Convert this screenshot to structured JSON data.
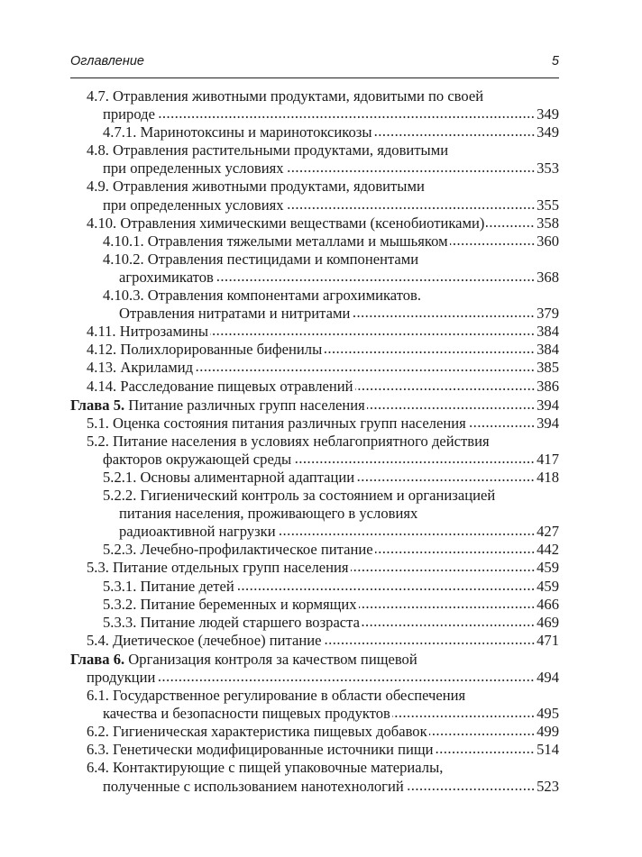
{
  "header": {
    "title": "Оглавление",
    "page_number": "5"
  },
  "entries": [
    {
      "level": 1,
      "lines": [
        "4.7. Отравления животными продуктами, ядовитыми по своей",
        "природе"
      ],
      "page": "349"
    },
    {
      "level": 2,
      "lines": [
        "4.7.1. Маринотоксины и маринотоксикозы"
      ],
      "page": "349"
    },
    {
      "level": 1,
      "lines": [
        "4.8. Отравления растительными продуктами, ядовитыми",
        "при определенных условиях"
      ],
      "page": "353"
    },
    {
      "level": 1,
      "lines": [
        "4.9. Отравления животными продуктами, ядовитыми",
        "при определенных условиях"
      ],
      "page": "355"
    },
    {
      "level": 1,
      "lines": [
        "4.10. Отравления химическими веществами (ксенобиотиками)"
      ],
      "page": "358"
    },
    {
      "level": 2,
      "lines": [
        "4.10.1. Отравления тяжелыми металлами и мышьяком"
      ],
      "page": "360"
    },
    {
      "level": 2,
      "lines": [
        "4.10.2. Отравления пестицидами и компонентами",
        "агрохимикатов"
      ],
      "page": "368"
    },
    {
      "level": 2,
      "lines": [
        "4.10.3. Отравления компонентами агрохимикатов.",
        "Отравления нитратами и нитритами"
      ],
      "page": "379"
    },
    {
      "level": 1,
      "lines": [
        "4.11. Нитрозамины"
      ],
      "page": "384"
    },
    {
      "level": 1,
      "lines": [
        "4.12. Полихлорированные бифенилы"
      ],
      "page": "384"
    },
    {
      "level": 1,
      "lines": [
        "4.13. Акриламид"
      ],
      "page": "385"
    },
    {
      "level": 1,
      "lines": [
        "4.14. Расследование пищевых отравлений"
      ],
      "page": "386"
    },
    {
      "level": 0,
      "bold": "Глава 5.",
      "lines": [
        " Питание различных групп населения"
      ],
      "page": "394"
    },
    {
      "level": 1,
      "lines": [
        "5.1. Оценка состояния питания различных групп населения"
      ],
      "page": "394"
    },
    {
      "level": 1,
      "lines": [
        "5.2. Питание населения в условиях неблагоприятного действия",
        "факторов окружающей среды"
      ],
      "page": "417"
    },
    {
      "level": 2,
      "lines": [
        "5.2.1. Основы алиментарной адаптации"
      ],
      "page": "418"
    },
    {
      "level": 2,
      "lines": [
        "5.2.2. Гигиенический контроль за состоянием и организацией",
        "питания населения, проживающего в условиях",
        "радиоактивной нагрузки"
      ],
      "page": "427"
    },
    {
      "level": 2,
      "lines": [
        "5.2.3. Лечебно-профилактическое питание"
      ],
      "page": "442"
    },
    {
      "level": 1,
      "lines": [
        "5.3. Питание отдельных групп населения"
      ],
      "page": "459"
    },
    {
      "level": 2,
      "lines": [
        "5.3.1. Питание детей"
      ],
      "page": "459"
    },
    {
      "level": 2,
      "lines": [
        "5.3.2. Питание беременных и кормящих"
      ],
      "page": "466"
    },
    {
      "level": 2,
      "lines": [
        "5.3.3. Питание людей старшего возраста"
      ],
      "page": "469"
    },
    {
      "level": 1,
      "lines": [
        "5.4. Диетическое (лечебное) питание"
      ],
      "page": "471"
    },
    {
      "level": 0,
      "bold": "Глава 6.",
      "lines": [
        " Организация контроля за качеством пищевой",
        "продукции"
      ],
      "page": "494"
    },
    {
      "level": 1,
      "lines": [
        "6.1. Государственное регулирование в области обеспечения",
        "качества и безопасности пищевых продуктов"
      ],
      "page": "495"
    },
    {
      "level": 1,
      "lines": [
        "6.2. Гигиеническая характеристика пищевых добавок"
      ],
      "page": "499"
    },
    {
      "level": 1,
      "lines": [
        "6.3. Генетически модифицированные источники пищи"
      ],
      "page": "514"
    },
    {
      "level": 1,
      "lines": [
        "6.4. Контактирующие с пищей упаковочные материалы,",
        "полученные с использованием нанотехнологий"
      ],
      "page": "523"
    }
  ]
}
